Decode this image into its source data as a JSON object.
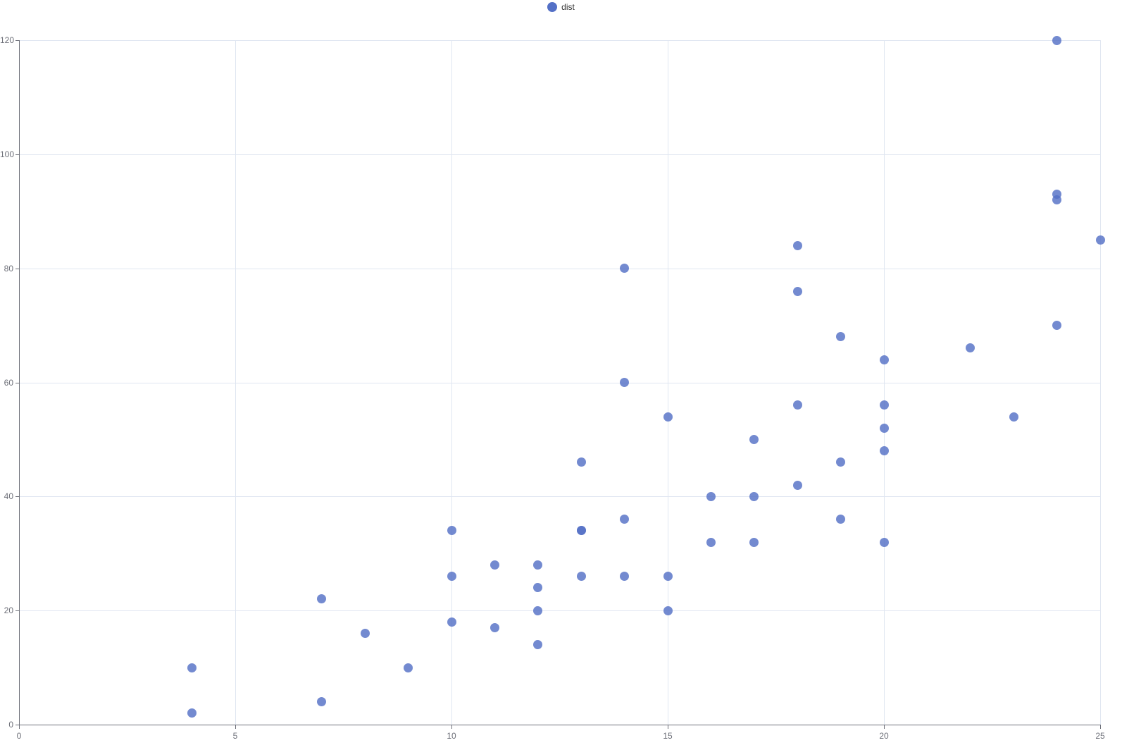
{
  "legend": {
    "items": [
      {
        "label": "dist",
        "color": "#5470c6"
      }
    ]
  },
  "chart_data": {
    "type": "scatter",
    "title": "",
    "xlabel": "",
    "ylabel": "",
    "xlim": [
      0,
      25
    ],
    "ylim": [
      0,
      120
    ],
    "x_ticks": [
      0,
      5,
      10,
      15,
      20,
      25
    ],
    "y_ticks": [
      0,
      20,
      40,
      60,
      80,
      100,
      120
    ],
    "grid": true,
    "legend_position": "top-center",
    "series": [
      {
        "name": "dist",
        "color": "#5470c6",
        "point_opacity": 0.82,
        "point_size": 13,
        "points": [
          [
            4,
            2
          ],
          [
            4,
            10
          ],
          [
            7,
            4
          ],
          [
            7,
            22
          ],
          [
            8,
            16
          ],
          [
            9,
            10
          ],
          [
            10,
            18
          ],
          [
            10,
            26
          ],
          [
            10,
            34
          ],
          [
            11,
            17
          ],
          [
            11,
            28
          ],
          [
            12,
            14
          ],
          [
            12,
            20
          ],
          [
            12,
            24
          ],
          [
            12,
            28
          ],
          [
            13,
            26
          ],
          [
            13,
            34
          ],
          [
            13,
            34
          ],
          [
            13,
            46
          ],
          [
            14,
            26
          ],
          [
            14,
            36
          ],
          [
            14,
            60
          ],
          [
            14,
            80
          ],
          [
            15,
            20
          ],
          [
            15,
            26
          ],
          [
            15,
            54
          ],
          [
            16,
            32
          ],
          [
            16,
            40
          ],
          [
            17,
            32
          ],
          [
            17,
            40
          ],
          [
            17,
            50
          ],
          [
            18,
            42
          ],
          [
            18,
            56
          ],
          [
            18,
            76
          ],
          [
            18,
            84
          ],
          [
            19,
            36
          ],
          [
            19,
            46
          ],
          [
            19,
            68
          ],
          [
            20,
            32
          ],
          [
            20,
            48
          ],
          [
            20,
            52
          ],
          [
            20,
            56
          ],
          [
            20,
            64
          ],
          [
            22,
            66
          ],
          [
            23,
            54
          ],
          [
            24,
            70
          ],
          [
            24,
            92
          ],
          [
            24,
            93
          ],
          [
            24,
            120
          ],
          [
            25,
            85
          ]
        ]
      }
    ],
    "colors": {
      "grid_line": "#E0E6F1",
      "axis_line": "#6E7079",
      "tick_label": "#6E7079",
      "legend_text": "#333333",
      "background": "#FFFFFF"
    }
  }
}
